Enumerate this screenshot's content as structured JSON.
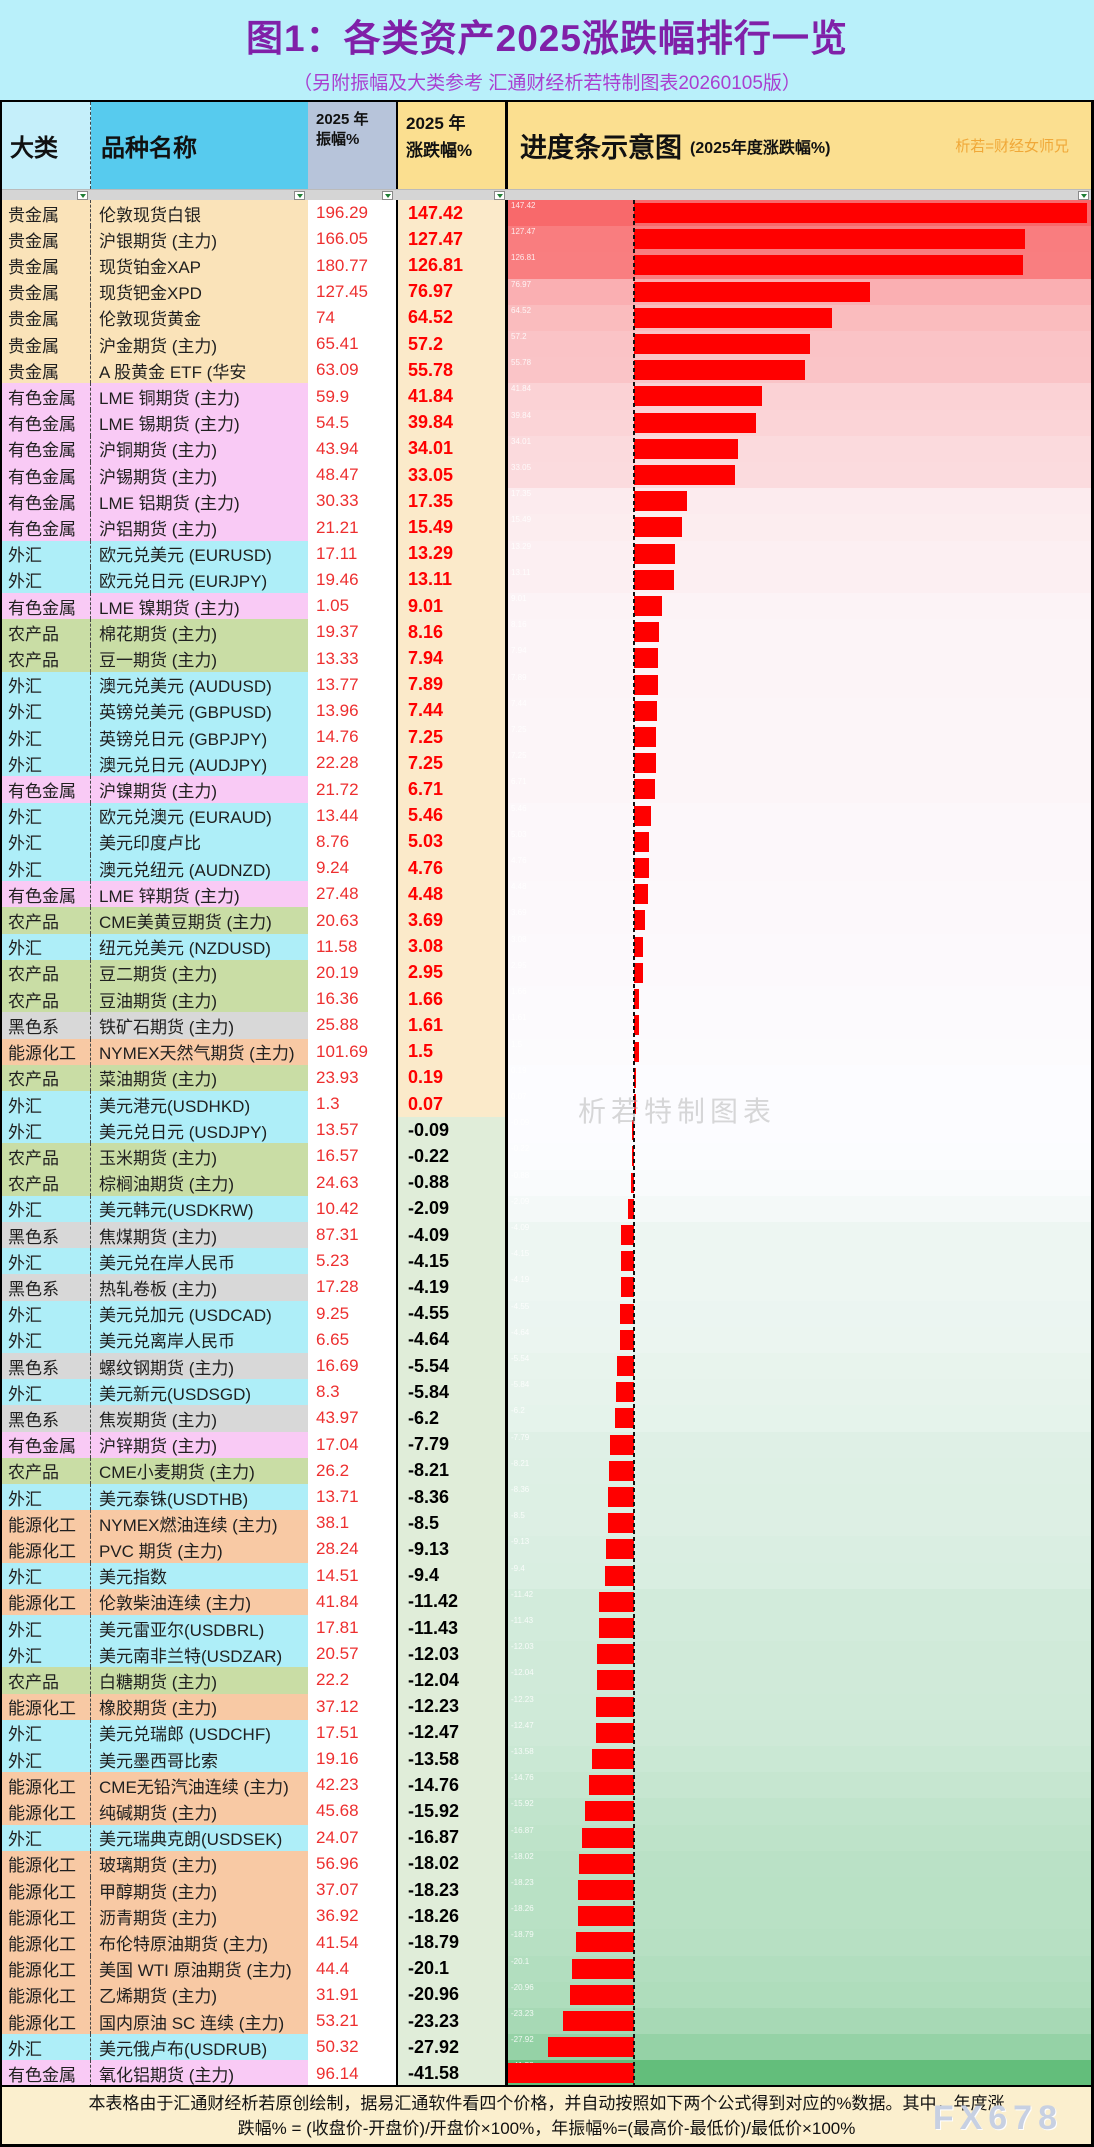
{
  "title": "图1：各类资产2025涨跌幅排行一览",
  "subtitle": "（另附振幅及大类参考 汇通财经析若特制图表20260105版）",
  "header": {
    "col_category": "大类",
    "col_name": "品种名称",
    "col_amplitude_line1": "2025 年",
    "col_amplitude_line2": "振幅%",
    "col_change_line1": "2025 年",
    "col_change_line2": "涨跌幅%",
    "chart_title": "进度条示意图",
    "chart_subtitle": "(2025年度涨跌幅%)",
    "chart_watermark": "析若=财经女师兄"
  },
  "watermarks": {
    "center": "析若特制图表",
    "footer": "FX678"
  },
  "footer": {
    "line1": "本表格由于汇通财经析若原创绘制，据易汇通软件看四个价格，并自动按照如下两个公式得到对应的%数据。其中，年度涨",
    "line2": "跌幅% = (收盘价-开盘价)/开盘价×100%，年振幅%=(最高价-最低价)/最低价×100%"
  },
  "colors": {
    "bar": "#FF0000",
    "scale_high": "#F8696B",
    "scale_mid": "#FCFCFF",
    "scale_low": "#63BE7B",
    "category": {
      "贵金属": "#FAE3B9",
      "有色金属": "#F9CAF5",
      "外汇": "#AEEEF8",
      "农产品": "#C9DDA5",
      "黑色系": "#D8D8D8",
      "能源化工": "#F8C9A4"
    }
  },
  "chart_data": {
    "type": "bar",
    "orientation": "horizontal",
    "title": "进度条示意图 (2025年度涨跌幅%)",
    "xlabel": "2025年涨跌幅%",
    "xlim": [
      -41.58,
      147.42
    ],
    "categories": [
      "伦敦现货白银",
      "沪银期货 (主力)",
      "现货铂金XAP",
      "现货钯金XPD",
      "伦敦现货黄金",
      "沪金期货 (主力)",
      "A 股黄金 ETF (华安",
      "LME 铜期货 (主力)",
      "LME 锡期货 (主力)",
      "沪铜期货 (主力)",
      "沪锡期货 (主力)",
      "LME 铝期货 (主力)",
      "沪铝期货 (主力)",
      "欧元兑美元 (EURUSD)",
      "欧元兑日元 (EURJPY)",
      "LME 镍期货 (主力)",
      "棉花期货 (主力)",
      "豆一期货 (主力)",
      "澳元兑美元 (AUDUSD)",
      "英镑兑美元 (GBPUSD)",
      "英镑兑日元 (GBPJPY)",
      "澳元兑日元 (AUDJPY)",
      "沪镍期货 (主力)",
      "欧元兑澳元 (EURAUD)",
      "美元印度卢比",
      "澳元兑纽元 (AUDNZD)",
      "LME 锌期货 (主力)",
      "CME美黄豆期货 (主力)",
      "纽元兑美元 (NZDUSD)",
      "豆二期货 (主力)",
      "豆油期货 (主力)",
      "铁矿石期货 (主力)",
      "NYMEX天然气期货 (主力)",
      "菜油期货 (主力)",
      "美元港元(USDHKD)",
      "美元兑日元 (USDJPY)",
      "玉米期货 (主力)",
      "棕榈油期货 (主力)",
      "美元韩元(USDKRW)",
      "焦煤期货 (主力)",
      "美元兑在岸人民币",
      "热轧卷板 (主力)",
      "美元兑加元 (USDCAD)",
      "美元兑离岸人民币",
      "螺纹钢期货 (主力)",
      "美元新元(USDSGD)",
      "焦炭期货 (主力)",
      "沪锌期货 (主力)",
      "CME小麦期货 (主力)",
      "美元泰铢(USDTHB)",
      "NYMEX燃油连续 (主力)",
      "PVC 期货 (主力)",
      "美元指数",
      "伦敦柴油连续 (主力)",
      "美元雷亚尔(USDBRL)",
      "美元南非兰特(USDZAR)",
      "白糖期货 (主力)",
      "橡胶期货 (主力)",
      "美元兑瑞郎 (USDCHF)",
      "美元墨西哥比索",
      "CME无铅汽油连续 (主力)",
      "纯碱期货 (主力)",
      "美元瑞典克朗(USDSEK)",
      "玻璃期货 (主力)",
      "甲醇期货 (主力)",
      "沥青期货 (主力)",
      "布伦特原油期货 (主力)",
      "美国 WTI 原油期货 (主力)",
      "乙烯期货 (主力)",
      "国内原油 SC 连续 (主力)",
      "美元俄卢布(USDRUB)",
      "氧化铝期货 (主力)"
    ],
    "groups": [
      "贵金属",
      "贵金属",
      "贵金属",
      "贵金属",
      "贵金属",
      "贵金属",
      "贵金属",
      "有色金属",
      "有色金属",
      "有色金属",
      "有色金属",
      "有色金属",
      "有色金属",
      "外汇",
      "外汇",
      "有色金属",
      "农产品",
      "农产品",
      "外汇",
      "外汇",
      "外汇",
      "外汇",
      "有色金属",
      "外汇",
      "外汇",
      "外汇",
      "有色金属",
      "农产品",
      "外汇",
      "农产品",
      "农产品",
      "黑色系",
      "能源化工",
      "农产品",
      "外汇",
      "外汇",
      "农产品",
      "农产品",
      "外汇",
      "黑色系",
      "外汇",
      "黑色系",
      "外汇",
      "外汇",
      "黑色系",
      "外汇",
      "黑色系",
      "有色金属",
      "农产品",
      "外汇",
      "能源化工",
      "能源化工",
      "外汇",
      "能源化工",
      "外汇",
      "外汇",
      "农产品",
      "能源化工",
      "外汇",
      "外汇",
      "能源化工",
      "能源化工",
      "外汇",
      "能源化工",
      "能源化工",
      "能源化工",
      "能源化工",
      "能源化工",
      "能源化工",
      "能源化工",
      "外汇",
      "有色金属"
    ],
    "series": [
      {
        "name": "2025 年振幅%",
        "values": [
          196.29,
          166.05,
          180.77,
          127.45,
          74,
          65.41,
          63.09,
          59.9,
          54.5,
          43.94,
          48.47,
          30.33,
          21.21,
          17.11,
          19.46,
          1.05,
          19.37,
          13.33,
          13.77,
          13.96,
          14.76,
          22.28,
          21.72,
          13.44,
          8.76,
          9.24,
          27.48,
          20.63,
          11.58,
          20.19,
          16.36,
          25.88,
          101.69,
          23.93,
          1.3,
          13.57,
          16.57,
          24.63,
          10.42,
          87.31,
          5.23,
          17.28,
          9.25,
          6.65,
          16.69,
          8.3,
          43.97,
          17.04,
          26.2,
          13.71,
          38.1,
          28.24,
          14.51,
          41.84,
          17.81,
          20.57,
          22.2,
          37.12,
          17.51,
          19.16,
          42.23,
          45.68,
          24.07,
          56.96,
          37.07,
          36.92,
          41.54,
          44.4,
          31.91,
          53.21,
          50.32,
          96.14
        ]
      },
      {
        "name": "2025 年涨跌幅%",
        "values": [
          147.42,
          127.47,
          126.81,
          76.97,
          64.52,
          57.2,
          55.78,
          41.84,
          39.84,
          34.01,
          33.05,
          17.35,
          15.49,
          13.29,
          13.11,
          9.01,
          8.16,
          7.94,
          7.89,
          7.44,
          7.25,
          7.25,
          6.71,
          5.46,
          5.03,
          4.76,
          4.48,
          3.69,
          3.08,
          2.95,
          1.66,
          1.61,
          1.5,
          0.19,
          0.07,
          -0.09,
          -0.22,
          -0.88,
          -2.09,
          -4.09,
          -4.15,
          -4.19,
          -4.55,
          -4.64,
          -5.54,
          -5.84,
          -6.2,
          -7.79,
          -8.21,
          -8.36,
          -8.5,
          -9.13,
          -9.4,
          -11.42,
          -11.43,
          -12.03,
          -12.04,
          -12.23,
          -12.47,
          -13.58,
          -14.76,
          -15.92,
          -16.87,
          -18.02,
          -18.23,
          -18.26,
          -18.79,
          -20.1,
          -20.96,
          -23.23,
          -27.92,
          -41.58
        ]
      }
    ],
    "legend_position": "none",
    "grid": false
  }
}
